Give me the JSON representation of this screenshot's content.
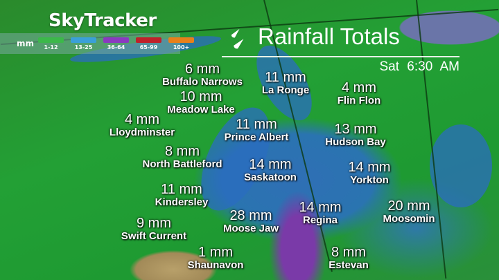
{
  "brand": "SkyTracker",
  "title": "Rainfall Totals",
  "time": "Sat  6:30 AM",
  "legend": {
    "unit": "mm",
    "bins": [
      {
        "label": "1-12",
        "color": "#3cb84a"
      },
      {
        "label": "13-25",
        "color": "#3aa0d8"
      },
      {
        "label": "36-64",
        "color": "#8a3ac0"
      },
      {
        "label": "65-99",
        "color": "#c0202a"
      },
      {
        "label": "100+",
        "color": "#e8801a"
      }
    ]
  },
  "cities": [
    {
      "value": "6 mm",
      "name": "Buffalo Narrows"
    },
    {
      "value": "11 mm",
      "name": "La Ronge"
    },
    {
      "value": "4 mm",
      "name": "Flin Flon"
    },
    {
      "value": "10 mm",
      "name": "Meadow Lake"
    },
    {
      "value": "4 mm",
      "name": "Lloydminster"
    },
    {
      "value": "11 mm",
      "name": "Prince Albert"
    },
    {
      "value": "13 mm",
      "name": "Hudson Bay"
    },
    {
      "value": "8 mm",
      "name": "North Battleford"
    },
    {
      "value": "14 mm",
      "name": "Saskatoon"
    },
    {
      "value": "14 mm",
      "name": "Yorkton"
    },
    {
      "value": "11 mm",
      "name": "Kindersley"
    },
    {
      "value": "28 mm",
      "name": "Moose Jaw"
    },
    {
      "value": "14 mm",
      "name": "Regina"
    },
    {
      "value": "20 mm",
      "name": "Moosomin"
    },
    {
      "value": "9 mm",
      "name": "Swift Current"
    },
    {
      "value": "1 mm",
      "name": "Shaunavon"
    },
    {
      "value": "8 mm",
      "name": "Estevan"
    }
  ]
}
